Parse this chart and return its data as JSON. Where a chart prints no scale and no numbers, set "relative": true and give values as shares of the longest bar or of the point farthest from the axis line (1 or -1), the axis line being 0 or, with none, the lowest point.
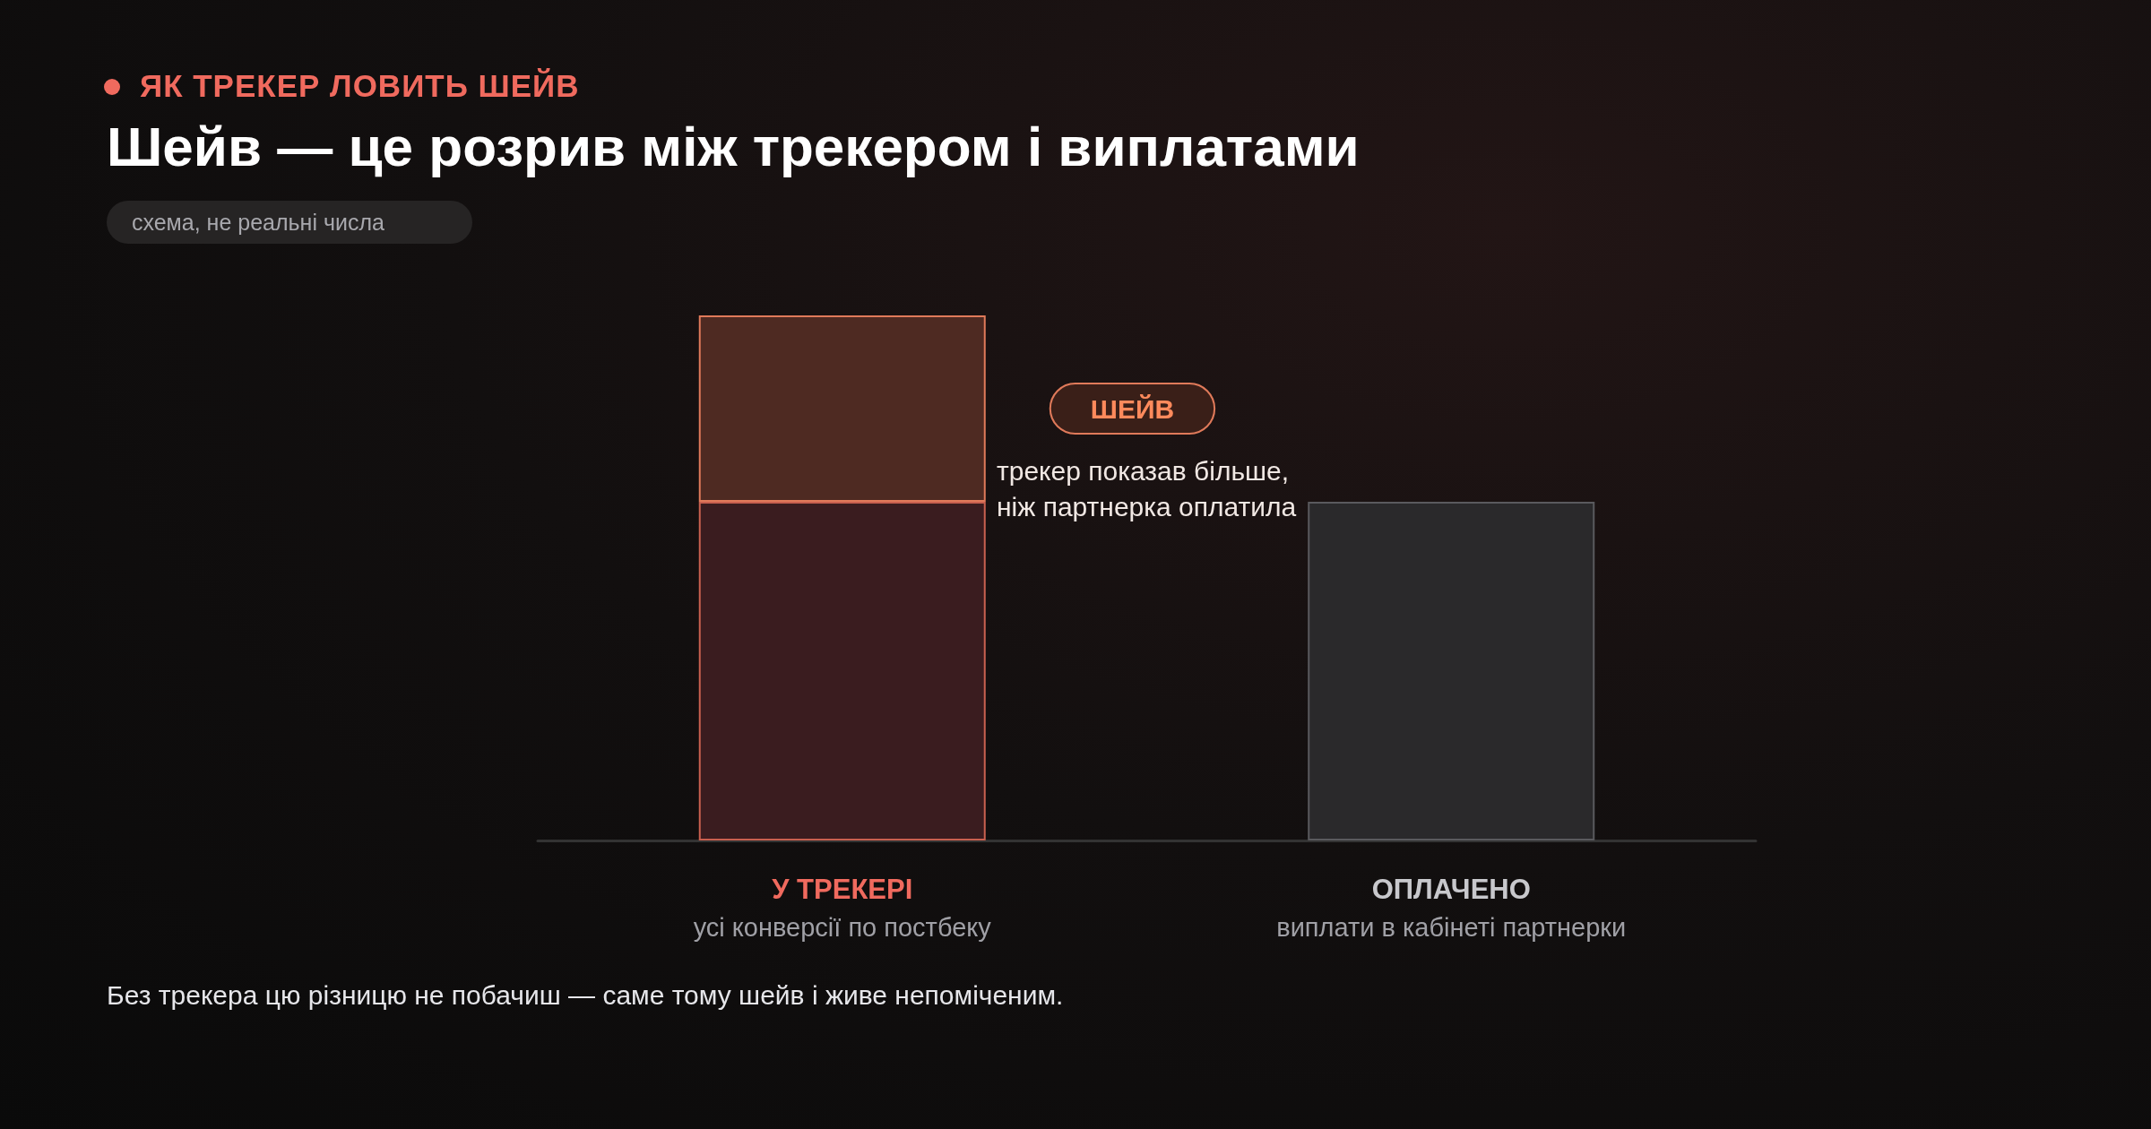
{
  "chart_data": {
    "type": "bar",
    "subtitle": "ЯК ТРЕКЕР ЛОВИТЬ ШЕЙВ",
    "title": "Шейв — це розрив між трекером і виплатами",
    "categories": [
      "У ТРЕКЕРІ\nусі конверсії по постбеку",
      "ОПЛАЧЕНО\nвиплати в кабінеті партнерки"
    ],
    "relative": true,
    "stacked": true,
    "grid": false,
    "legend": false,
    "series": [
      {
        "colors": [
          "#3a1c1f",
          "#2a292b"
        ],
        "values": [
          0.645,
          0.645
        ]
      },
      {
        "name": "ШЕЙВ",
        "color": "#4e2a22",
        "values": [
          0.355,
          null
        ]
      }
    ],
    "annotations": [
      "схема, не реальні числа",
      "трекер показав більше,\nніж партнерка оплатила",
      "Без трекера цю різницю не побачиш — саме тому шейв і живе непоміченим."
    ]
  }
}
